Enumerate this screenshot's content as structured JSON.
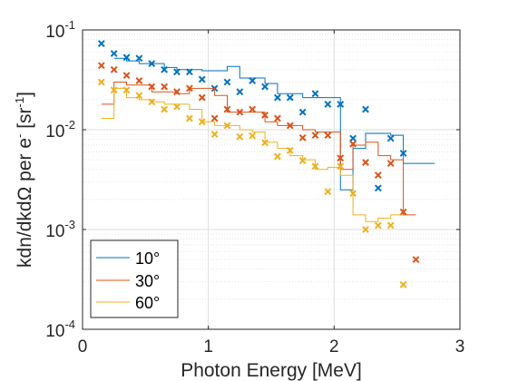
{
  "chart_data": {
    "type": "line",
    "xlabel": "Photon Energy [MeV]",
    "ylabel_parts": {
      "main": "kdn/dkdΩ per e",
      "sup1": "-",
      "mid": " [sr",
      "sup2": "-1",
      "end": "]"
    },
    "xlim": [
      0,
      3
    ],
    "ylim": [
      0.0001,
      0.1
    ],
    "yscale": "log",
    "grid": true,
    "legend_position": "bottom-left",
    "x_ticks": [
      {
        "value": 0,
        "label": "0"
      },
      {
        "value": 1,
        "label": "1"
      },
      {
        "value": 2,
        "label": "2"
      },
      {
        "value": 3,
        "label": "3"
      }
    ],
    "y_ticks": [
      {
        "exp": -1,
        "base": "10",
        "sup": "-1"
      },
      {
        "exp": -2,
        "base": "10",
        "sup": "-2"
      },
      {
        "exp": -3,
        "base": "10",
        "sup": "-3"
      },
      {
        "exp": -4,
        "base": "10",
        "sup": "-4"
      }
    ],
    "series": [
      {
        "name": "10°",
        "color": "#0072BD",
        "step_edges": [
          0.25,
          0.35,
          0.45,
          0.55,
          0.65,
          0.75,
          0.85,
          0.95,
          1.05,
          1.15,
          1.25,
          1.35,
          1.45,
          1.55,
          1.65,
          1.75,
          1.85,
          1.95,
          2.05,
          2.15,
          2.25,
          2.35,
          2.45,
          2.55,
          2.8
        ],
        "step_values": [
          0.052,
          0.049,
          0.046,
          0.046,
          0.042,
          0.04,
          0.04,
          0.039,
          0.039,
          0.043,
          0.033,
          0.033,
          0.029,
          0.023,
          0.023,
          0.021,
          0.021,
          0.021,
          0.0025,
          0.0065,
          0.0092,
          0.0092,
          0.0088,
          0.0046
        ],
        "markers": [
          [
            0.15,
            0.073
          ],
          [
            0.25,
            0.058
          ],
          [
            0.35,
            0.053
          ],
          [
            0.45,
            0.052
          ],
          [
            0.55,
            0.046
          ],
          [
            0.65,
            0.04
          ],
          [
            0.75,
            0.038
          ],
          [
            0.85,
            0.038
          ],
          [
            0.95,
            0.032
          ],
          [
            1.05,
            0.026
          ],
          [
            1.15,
            0.03
          ],
          [
            1.25,
            0.024
          ],
          [
            1.35,
            0.031
          ],
          [
            1.45,
            0.027
          ],
          [
            1.55,
            0.021
          ],
          [
            1.65,
            0.021
          ],
          [
            1.75,
            0.015
          ],
          [
            1.85,
            0.023
          ],
          [
            1.95,
            0.018
          ],
          [
            2.05,
            0.018
          ],
          [
            2.15,
            0.0082
          ],
          [
            2.25,
            0.016
          ],
          [
            2.35,
            0.0026
          ],
          [
            2.45,
            0.0082
          ],
          [
            2.55,
            0.0058
          ]
        ]
      },
      {
        "name": "30°",
        "color": "#D95319",
        "step_edges": [
          0.15,
          0.25,
          0.35,
          0.45,
          0.55,
          0.65,
          0.75,
          0.85,
          0.95,
          1.05,
          1.15,
          1.25,
          1.35,
          1.45,
          1.55,
          1.65,
          1.75,
          1.85,
          1.95,
          2.05,
          2.15,
          2.25,
          2.35,
          2.45,
          2.55,
          2.65
        ],
        "step_values": [
          0.018,
          0.03,
          0.028,
          0.028,
          0.024,
          0.024,
          0.023,
          0.026,
          0.026,
          0.022,
          0.015,
          0.015,
          0.015,
          0.012,
          0.011,
          0.011,
          0.01,
          0.0095,
          0.0095,
          0.004,
          0.007,
          0.0075,
          0.0055,
          0.005,
          0.0014
        ],
        "markers": [
          [
            0.15,
            0.044
          ],
          [
            0.25,
            0.04
          ],
          [
            0.35,
            0.035
          ],
          [
            0.45,
            0.031
          ],
          [
            0.55,
            0.027
          ],
          [
            0.65,
            0.027
          ],
          [
            0.75,
            0.024
          ],
          [
            0.85,
            0.026
          ],
          [
            0.95,
            0.021
          ],
          [
            1.05,
            0.013
          ],
          [
            1.15,
            0.016
          ],
          [
            1.25,
            0.015
          ],
          [
            1.35,
            0.016
          ],
          [
            1.45,
            0.014
          ],
          [
            1.55,
            0.013
          ],
          [
            1.65,
            0.011
          ],
          [
            1.75,
            0.0083
          ],
          [
            1.85,
            0.0088
          ],
          [
            1.95,
            0.0088
          ],
          [
            2.05,
            0.0052
          ],
          [
            2.15,
            0.0072
          ],
          [
            2.25,
            0.0047
          ],
          [
            2.35,
            0.0035
          ],
          [
            2.45,
            0.0046
          ],
          [
            2.55,
            0.0015
          ],
          [
            2.65,
            0.0005
          ]
        ]
      },
      {
        "name": "60°",
        "color": "#EDB120",
        "step_edges": [
          0.15,
          0.25,
          0.35,
          0.45,
          0.55,
          0.65,
          0.75,
          0.85,
          0.95,
          1.05,
          1.15,
          1.25,
          1.35,
          1.45,
          1.55,
          1.65,
          1.75,
          1.85,
          1.95,
          2.05,
          2.15,
          2.25,
          2.35,
          2.45,
          2.55
        ],
        "step_values": [
          0.013,
          0.026,
          0.021,
          0.02,
          0.019,
          0.018,
          0.018,
          0.016,
          0.012,
          0.011,
          0.011,
          0.01,
          0.0095,
          0.0075,
          0.0065,
          0.0055,
          0.005,
          0.004,
          0.0042,
          0.0035,
          0.0014,
          0.0012,
          0.0013,
          0.0014
        ],
        "markers": [
          [
            0.15,
            0.03
          ],
          [
            0.25,
            0.025
          ],
          [
            0.35,
            0.025
          ],
          [
            0.45,
            0.022
          ],
          [
            0.55,
            0.019
          ],
          [
            0.65,
            0.016
          ],
          [
            0.75,
            0.017
          ],
          [
            0.85,
            0.013
          ],
          [
            0.95,
            0.012
          ],
          [
            1.05,
            0.009
          ],
          [
            1.15,
            0.011
          ],
          [
            1.25,
            0.0085
          ],
          [
            1.35,
            0.0087
          ],
          [
            1.45,
            0.0074
          ],
          [
            1.55,
            0.0054
          ],
          [
            1.65,
            0.0062
          ],
          [
            1.75,
            0.0049
          ],
          [
            1.85,
            0.0043
          ],
          [
            1.95,
            0.0024
          ],
          [
            2.05,
            0.0043
          ],
          [
            2.15,
            0.0023
          ],
          [
            2.25,
            0.001
          ],
          [
            2.35,
            0.0011
          ],
          [
            2.45,
            0.0011
          ],
          [
            2.55,
            0.00028
          ]
        ]
      }
    ]
  }
}
